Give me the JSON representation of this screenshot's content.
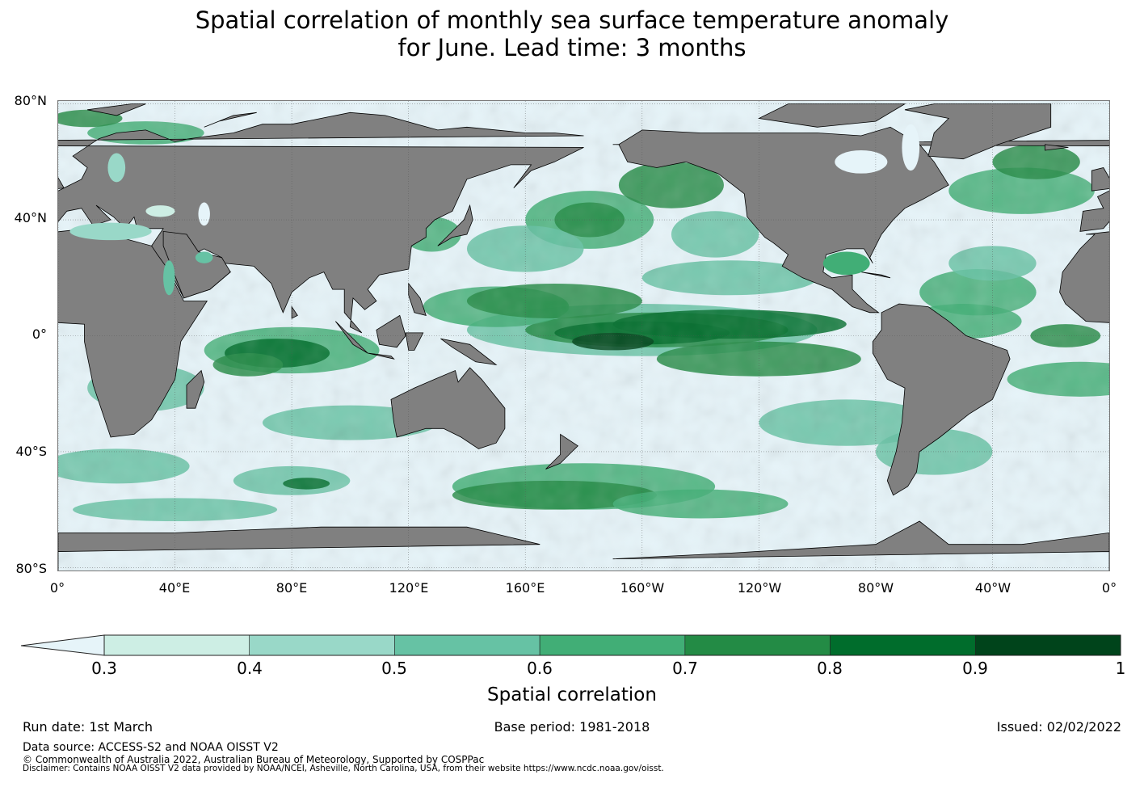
{
  "title": {
    "line1": "Spatial correlation of monthly sea surface temperature anomaly",
    "line2": "for June. Lead time: 3 months"
  },
  "map": {
    "land_color": "#808080",
    "ocean_base_color": "#e6f4f9",
    "lat_labels": [
      "80°N",
      "40°N",
      "0°",
      "40°S",
      "80°S"
    ],
    "lon_labels": [
      "0°",
      "40°E",
      "80°E",
      "120°E",
      "160°E",
      "160°W",
      "120°W",
      "80°W",
      "40°W",
      "0°"
    ]
  },
  "colorbar": {
    "title": "Spatial correlation",
    "under_color": "#e6f4f9",
    "bounds": [
      "0.3",
      "0.4",
      "0.5",
      "0.6",
      "0.7",
      "0.8",
      "0.9",
      "1"
    ],
    "colors": [
      "#cdeee4",
      "#99d8c8",
      "#66c2a4",
      "#41ae76",
      "#238b45",
      "#006d2c",
      "#00441b"
    ]
  },
  "footer": {
    "run_date": "Run date: 1st March",
    "base_period": "Base period: 1981-2018",
    "issued": "Issued: 02/02/2022",
    "source": "Data source: ACCESS-S2 and NOAA OISST V2",
    "copyright": "© Commonwealth of Australia 2022, Australian Bureau of Meteorology, Supported by COSPPac",
    "disclaimer": "Disclaimer: Contains NOAA OISST V2 data provided by NOAA/NCEI, Asheville, North Carolina, USA, from their website https://www.ncdc.noaa.gov/oisst."
  }
}
